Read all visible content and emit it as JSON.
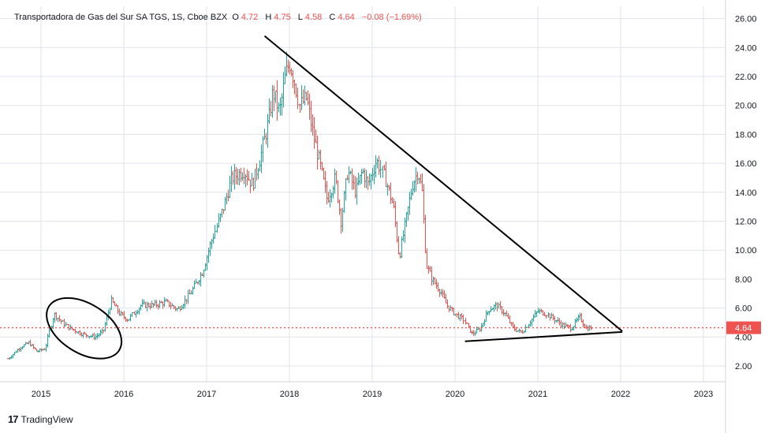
{
  "legend": {
    "symbol": "Transportadora de Gas del Sur SA TGS, 1S, Cboe BZX",
    "open_label": "O",
    "open": "4.72",
    "high_label": "H",
    "high": "4.75",
    "low_label": "L",
    "low": "4.58",
    "close_label": "C",
    "close": "4.64",
    "change": "−0.08 (−1.69%)"
  },
  "brand": {
    "logo": "17",
    "name": "TradingView"
  },
  "colors": {
    "up": "#26a69a",
    "down": "#ef5350",
    "grid": "#e0e3eb",
    "price_line": "#ef5350",
    "drawing": "#000000"
  },
  "chart_data": {
    "type": "bar",
    "title": "Transportadora de Gas del Sur SA TGS, 1S, Cboe BZX",
    "interval": "1S",
    "last_price": 4.64,
    "ylim": [
      1.0,
      26.5
    ],
    "xlim": [
      2014.58,
      2023.2
    ],
    "y_ticks": [
      "26.00",
      "24.00",
      "22.00",
      "20.00",
      "18.00",
      "16.00",
      "14.00",
      "12.00",
      "10.00",
      "8.00",
      "6.00",
      "4.00",
      "2.00"
    ],
    "x_ticks": [
      "2015",
      "2016",
      "2017",
      "2018",
      "2019",
      "2020",
      "2021",
      "2022",
      "2023"
    ],
    "grid": true,
    "price_path": [
      [
        2014.6,
        2.5
      ],
      [
        2014.75,
        3.3
      ],
      [
        2014.85,
        3.6
      ],
      [
        2014.95,
        3.0
      ],
      [
        2015.05,
        3.2
      ],
      [
        2015.15,
        5.6
      ],
      [
        2015.25,
        5.0
      ],
      [
        2015.35,
        4.6
      ],
      [
        2015.5,
        4.2
      ],
      [
        2015.65,
        4.0
      ],
      [
        2015.75,
        4.4
      ],
      [
        2015.85,
        6.5
      ],
      [
        2015.95,
        5.6
      ],
      [
        2016.05,
        5.2
      ],
      [
        2016.2,
        6.2
      ],
      [
        2016.35,
        6.2
      ],
      [
        2016.5,
        6.4
      ],
      [
        2016.65,
        5.9
      ],
      [
        2016.8,
        7.0
      ],
      [
        2016.95,
        8.5
      ],
      [
        2017.05,
        10.5
      ],
      [
        2017.2,
        13.0
      ],
      [
        2017.3,
        15.0
      ],
      [
        2017.45,
        15.5
      ],
      [
        2017.55,
        14.5
      ],
      [
        2017.65,
        16.5
      ],
      [
        2017.75,
        19.0
      ],
      [
        2017.8,
        21.0
      ],
      [
        2017.88,
        19.5
      ],
      [
        2017.95,
        22.0
      ],
      [
        2018.0,
        23.0
      ],
      [
        2018.05,
        22.0
      ],
      [
        2018.12,
        20.0
      ],
      [
        2018.2,
        20.5
      ],
      [
        2018.28,
        18.0
      ],
      [
        2018.36,
        16.0
      ],
      [
        2018.45,
        13.5
      ],
      [
        2018.55,
        15.0
      ],
      [
        2018.62,
        12.0
      ],
      [
        2018.7,
        15.5
      ],
      [
        2018.8,
        14.0
      ],
      [
        2018.88,
        15.5
      ],
      [
        2018.95,
        14.5
      ],
      [
        2019.05,
        16.2
      ],
      [
        2019.15,
        15.0
      ],
      [
        2019.25,
        13.0
      ],
      [
        2019.32,
        9.5
      ],
      [
        2019.4,
        12.0
      ],
      [
        2019.48,
        14.5
      ],
      [
        2019.55,
        15.5
      ],
      [
        2019.6,
        14.0
      ],
      [
        2019.65,
        9.0
      ],
      [
        2019.72,
        8.0
      ],
      [
        2019.82,
        7.2
      ],
      [
        2019.9,
        6.2
      ],
      [
        2020.0,
        5.6
      ],
      [
        2020.1,
        5.2
      ],
      [
        2020.2,
        4.2
      ],
      [
        2020.3,
        4.6
      ],
      [
        2020.4,
        5.9
      ],
      [
        2020.5,
        6.2
      ],
      [
        2020.6,
        5.6
      ],
      [
        2020.7,
        4.6
      ],
      [
        2020.8,
        4.3
      ],
      [
        2020.9,
        5.0
      ],
      [
        2021.0,
        5.8
      ],
      [
        2021.1,
        5.6
      ],
      [
        2021.2,
        5.2
      ],
      [
        2021.3,
        4.8
      ],
      [
        2021.4,
        4.6
      ],
      [
        2021.5,
        5.4
      ],
      [
        2021.58,
        4.6
      ],
      [
        2021.65,
        4.64
      ]
    ],
    "annotations": [
      {
        "kind": "trendline",
        "from": [
          2017.7,
          24.8
        ],
        "to": [
          2022.02,
          4.4
        ]
      },
      {
        "kind": "trendline",
        "from": [
          2020.12,
          3.7
        ],
        "to": [
          2022.02,
          4.35
        ]
      },
      {
        "kind": "ellipse",
        "center": [
          2015.52,
          4.6
        ],
        "rx_years": 0.5,
        "ry_price": 1.7,
        "rotate_deg": 32
      }
    ]
  }
}
